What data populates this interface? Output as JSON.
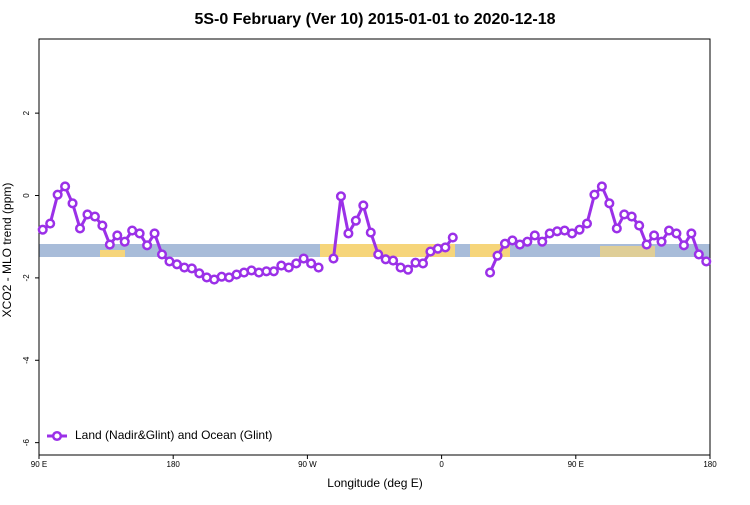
{
  "chart_data": {
    "type": "line",
    "title": "5S-0 February (Ver 10)   2015-01-01 to 2020-12-18",
    "x_label": "Longitude (deg E)",
    "y_label": "XCO2 - MLO trend (ppm)",
    "xlim": [
      90,
      540
    ],
    "xticks": [
      {
        "value": 90,
        "label": "90 E"
      },
      {
        "value": 180,
        "label": "180"
      },
      {
        "value": 270,
        "label": "90 W"
      },
      {
        "value": 360,
        "label": "0"
      },
      {
        "value": 450,
        "label": "90 E"
      },
      {
        "value": 540,
        "label": "180"
      }
    ],
    "ylim": [
      -6.3,
      3.8
    ],
    "yticks": [
      -6,
      -4,
      -2,
      0,
      2
    ],
    "legend": "bottom-left",
    "x": [
      92.5,
      97.5,
      102.5,
      107.5,
      112.5,
      117.5,
      122.5,
      127.5,
      132.5,
      137.5,
      142.5,
      147.5,
      152.5,
      157.5,
      162.5,
      167.5,
      172.5,
      177.5,
      182.5,
      187.5,
      192.5,
      197.5,
      202.5,
      207.5,
      212.5,
      217.5,
      222.5,
      227.5,
      232.5,
      237.5,
      242.5,
      247.5,
      252.5,
      257.5,
      262.5,
      267.5,
      272.5,
      277.5,
      282.5,
      287.5,
      292.5,
      297.5,
      302.5,
      307.5,
      312.5,
      317.5,
      322.5,
      327.5,
      332.5,
      337.5,
      342.5,
      347.5,
      352.5,
      357.5,
      362.5,
      367.5,
      372.5,
      377.5,
      382.5,
      387.5,
      392.5,
      397.5,
      402.5,
      407.5,
      412.5,
      417.5,
      422.5,
      427.5,
      432.5,
      437.5,
      442.5,
      447.5,
      452.5,
      457.5,
      462.5,
      467.5,
      472.5,
      477.5,
      482.5,
      487.5,
      492.5,
      497.5,
      502.5,
      507.5,
      512.5,
      517.5,
      522.5,
      527.5,
      532.5,
      537.5
    ],
    "series": [
      {
        "name": "Land (Nadir&Glint) and Ocean (Glint)",
        "color": "#9b30e8",
        "values": [
          -0.83,
          -0.68,
          0.02,
          0.22,
          -0.19,
          -0.8,
          -0.46,
          -0.51,
          -0.73,
          -1.19,
          -0.97,
          -1.12,
          -0.85,
          -0.92,
          -1.21,
          -0.92,
          -1.43,
          -1.6,
          -1.67,
          -1.75,
          -1.77,
          -1.89,
          -1.99,
          -2.04,
          -1.97,
          -1.99,
          -1.92,
          -1.87,
          -1.82,
          -1.87,
          -1.84,
          -1.84,
          -1.7,
          -1.75,
          -1.65,
          -1.53,
          -1.65,
          -1.75,
          null,
          -1.53,
          -0.02,
          -0.92,
          -0.61,
          -0.24,
          -0.9,
          -1.43,
          -1.55,
          -1.58,
          -1.75,
          -1.8,
          -1.63,
          -1.65,
          -1.36,
          -1.29,
          -1.26,
          -1.02,
          null,
          null,
          null,
          null,
          -1.87,
          -1.46,
          -1.17,
          -1.09,
          -1.19,
          -1.12,
          -0.97,
          -1.12,
          -0.92,
          -0.87,
          -0.85,
          -0.92,
          -0.83,
          -0.68,
          0.02,
          0.22,
          -0.19,
          -0.8,
          -0.46,
          -0.51,
          -0.73,
          -1.19,
          -0.97,
          -1.12,
          -0.85,
          -0.92,
          -1.21,
          -0.92,
          -1.43,
          -1.6
        ]
      }
    ]
  }
}
